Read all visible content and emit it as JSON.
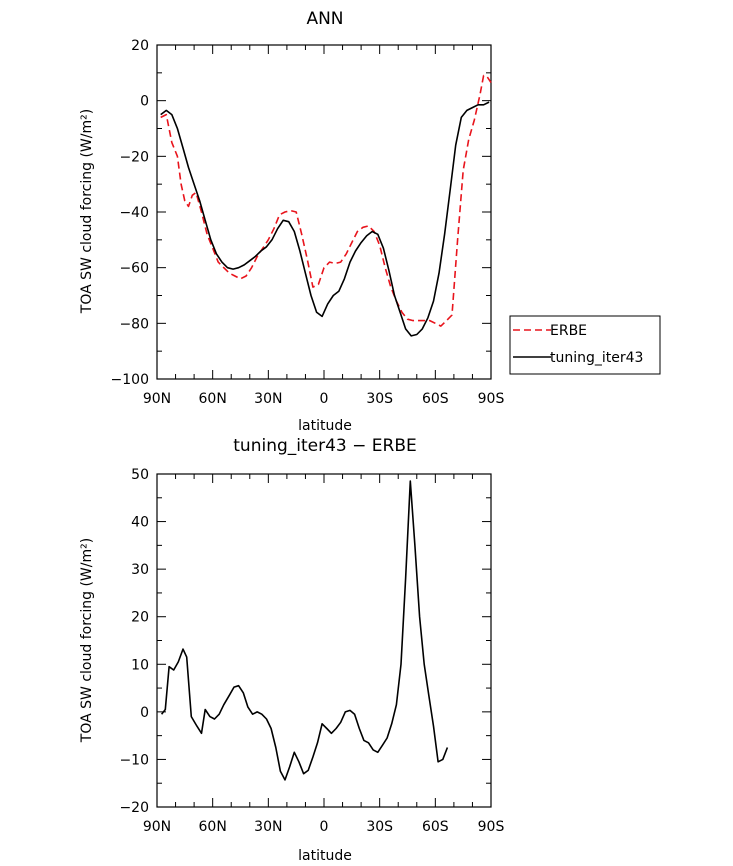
{
  "chart_data": [
    {
      "type": "line",
      "title": "ANN",
      "xlabel": "latitude",
      "ylabel": "TOA SW cloud forcing (W/m²)",
      "xlim": [
        90,
        -90
      ],
      "ylim": [
        -100,
        20
      ],
      "x_ticks": [
        90,
        60,
        30,
        0,
        -30,
        -60,
        -90
      ],
      "x_tick_labels": [
        "90N",
        "60N",
        "30N",
        "0",
        "30S",
        "60S",
        "90S"
      ],
      "y_ticks": [
        20,
        0,
        -20,
        -40,
        -60,
        -80,
        -100
      ],
      "y_tick_labels": [
        "20",
        "0",
        "−20",
        "−40",
        "−60",
        "−80",
        "−100"
      ],
      "grid": false,
      "legend": "right",
      "series": [
        {
          "name": "ERBE",
          "color": "#e8141c",
          "dash": "dashed",
          "points": [
            [
              88,
              -6
            ],
            [
              85,
              -5
            ],
            [
              82,
              -15
            ],
            [
              79,
              -20
            ],
            [
              77,
              -30
            ],
            [
              75,
              -36
            ],
            [
              73,
              -38
            ],
            [
              71,
              -34
            ],
            [
              69,
              -33
            ],
            [
              66,
              -40
            ],
            [
              63,
              -48
            ],
            [
              60,
              -53
            ],
            [
              57,
              -58
            ],
            [
              54,
              -60
            ],
            [
              51,
              -62
            ],
            [
              48,
              -63
            ],
            [
              45,
              -64
            ],
            [
              42,
              -63
            ],
            [
              39,
              -60
            ],
            [
              36,
              -56
            ],
            [
              33,
              -53
            ],
            [
              30,
              -50
            ],
            [
              27,
              -46
            ],
            [
              24,
              -41
            ],
            [
              21,
              -40
            ],
            [
              18,
              -39.5
            ],
            [
              15,
              -40
            ],
            [
              12,
              -48
            ],
            [
              9,
              -57
            ],
            [
              6,
              -67
            ],
            [
              3,
              -66
            ],
            [
              0,
              -60
            ],
            [
              -3,
              -58
            ],
            [
              -6,
              -58.5
            ],
            [
              -9,
              -58
            ],
            [
              -12,
              -55
            ],
            [
              -15,
              -51
            ],
            [
              -18,
              -47
            ],
            [
              -21,
              -45.5
            ],
            [
              -24,
              -45
            ],
            [
              -27,
              -47
            ],
            [
              -30,
              -52
            ],
            [
              -33,
              -60
            ],
            [
              -36,
              -67
            ],
            [
              -39,
              -72
            ],
            [
              -42,
              -76
            ],
            [
              -45,
              -78.5
            ],
            [
              -48,
              -79
            ],
            [
              -51,
              -79
            ],
            [
              -54,
              -79
            ],
            [
              -57,
              -79
            ],
            [
              -60,
              -80
            ],
            [
              -63,
              -81
            ],
            [
              -66,
              -79
            ],
            [
              -69,
              -77
            ],
            [
              -72,
              -50
            ],
            [
              -75,
              -25
            ],
            [
              -78,
              -14
            ],
            [
              -81,
              -7
            ],
            [
              -84,
              2
            ],
            [
              -86,
              9
            ],
            [
              -88,
              8.5
            ],
            [
              -90,
              6.5
            ]
          ]
        },
        {
          "name": "tuning_iter43",
          "color": "#000000",
          "dash": "solid",
          "points": [
            [
              88,
              -5
            ],
            [
              85,
              -3.5
            ],
            [
              82,
              -5
            ],
            [
              79,
              -10
            ],
            [
              76,
              -17
            ],
            [
              73,
              -24
            ],
            [
              70,
              -30
            ],
            [
              67,
              -36
            ],
            [
              64,
              -43
            ],
            [
              61,
              -50
            ],
            [
              58,
              -55
            ],
            [
              55,
              -58
            ],
            [
              52,
              -60
            ],
            [
              49,
              -60.5
            ],
            [
              46,
              -60
            ],
            [
              43,
              -59
            ],
            [
              40,
              -57.5
            ],
            [
              37,
              -56
            ],
            [
              34,
              -54
            ],
            [
              31,
              -52.5
            ],
            [
              28,
              -50
            ],
            [
              25,
              -46
            ],
            [
              22,
              -43
            ],
            [
              19,
              -43.5
            ],
            [
              16,
              -47
            ],
            [
              13,
              -54
            ],
            [
              10,
              -62
            ],
            [
              7,
              -70
            ],
            [
              4,
              -76
            ],
            [
              1,
              -77.5
            ],
            [
              -2,
              -73
            ],
            [
              -5,
              -70
            ],
            [
              -8,
              -68.5
            ],
            [
              -11,
              -64
            ],
            [
              -14,
              -58
            ],
            [
              -17,
              -54
            ],
            [
              -20,
              -51
            ],
            [
              -23,
              -48.5
            ],
            [
              -26,
              -47
            ],
            [
              -29,
              -48
            ],
            [
              -32,
              -53
            ],
            [
              -35,
              -61
            ],
            [
              -38,
              -70
            ],
            [
              -41,
              -76
            ],
            [
              -44,
              -82
            ],
            [
              -47,
              -84.5
            ],
            [
              -50,
              -84
            ],
            [
              -53,
              -82
            ],
            [
              -56,
              -78
            ],
            [
              -59,
              -72
            ],
            [
              -62,
              -62
            ],
            [
              -65,
              -48
            ],
            [
              -68,
              -32
            ],
            [
              -71,
              -16
            ],
            [
              -74,
              -6
            ],
            [
              -77,
              -3.5
            ],
            [
              -80,
              -2.5
            ],
            [
              -83,
              -1.5
            ],
            [
              -86,
              -1.5
            ],
            [
              -89,
              -0.5
            ]
          ]
        }
      ]
    },
    {
      "type": "line",
      "title": "tuning_iter43 − ERBE",
      "xlabel": "latitude",
      "ylabel": "TOA SW cloud forcing (W/m²)",
      "xlim": [
        90,
        -90
      ],
      "ylim": [
        -20,
        50
      ],
      "x_ticks": [
        90,
        60,
        30,
        0,
        -30,
        -60,
        -90
      ],
      "x_tick_labels": [
        "90N",
        "60N",
        "30N",
        "0",
        "30S",
        "60S",
        "90S"
      ],
      "y_ticks": [
        50,
        40,
        30,
        20,
        10,
        0,
        -10,
        -20
      ],
      "y_tick_labels": [
        "50",
        "40",
        "30",
        "20",
        "10",
        "0",
        "−10",
        "−20"
      ],
      "grid": false,
      "series": [
        {
          "color": "#000000",
          "dash": "solid",
          "points": [
            [
              87.5,
              -0.5
            ],
            [
              85.5,
              0.5
            ],
            [
              83.5,
              9.5
            ],
            [
              81,
              8.8
            ],
            [
              78.5,
              10.5
            ],
            [
              76,
              13.2
            ],
            [
              74,
              11.5
            ],
            [
              71.5,
              -1
            ],
            [
              68.5,
              -3
            ],
            [
              66,
              -4.5
            ],
            [
              64,
              0.5
            ],
            [
              61.5,
              -1
            ],
            [
              59,
              -1.5
            ],
            [
              56.5,
              -0.5
            ],
            [
              54,
              1.5
            ],
            [
              51,
              3.5
            ],
            [
              48.5,
              5.2
            ],
            [
              46,
              5.5
            ],
            [
              43.5,
              4
            ],
            [
              41,
              1
            ],
            [
              38.5,
              -0.5
            ],
            [
              36,
              0
            ],
            [
              33.5,
              -0.5
            ],
            [
              31,
              -1.5
            ],
            [
              28.5,
              -3.5
            ],
            [
              26,
              -7.5
            ],
            [
              23.5,
              -12.5
            ],
            [
              21,
              -14.3
            ],
            [
              18.5,
              -11.5
            ],
            [
              16,
              -8.5
            ],
            [
              13.5,
              -10.5
            ],
            [
              11,
              -13
            ],
            [
              8.5,
              -12.3
            ],
            [
              6,
              -9.5
            ],
            [
              3.5,
              -6.5
            ],
            [
              1,
              -2.5
            ],
            [
              -1.5,
              -3.5
            ],
            [
              -4,
              -4.5
            ],
            [
              -6.5,
              -3.5
            ],
            [
              -9,
              -2.2
            ],
            [
              -11.5,
              0
            ],
            [
              -14,
              0.3
            ],
            [
              -16.5,
              -0.5
            ],
            [
              -19,
              -3.5
            ],
            [
              -21.5,
              -6
            ],
            [
              -24,
              -6.5
            ],
            [
              -26.5,
              -8
            ],
            [
              -29,
              -8.5
            ],
            [
              -31.5,
              -7
            ],
            [
              -34,
              -5.5
            ],
            [
              -36.5,
              -2.5
            ],
            [
              -39,
              1.5
            ],
            [
              -41.5,
              10
            ],
            [
              -44,
              28
            ],
            [
              -46.5,
              48.5
            ],
            [
              -49,
              35
            ],
            [
              -51.5,
              20
            ],
            [
              -54,
              10
            ],
            [
              -56.5,
              3.5
            ],
            [
              -59,
              -3
            ],
            [
              -61.5,
              -10.5
            ],
            [
              -64,
              -10
            ],
            [
              -66.5,
              -7.5
            ]
          ]
        }
      ]
    }
  ]
}
